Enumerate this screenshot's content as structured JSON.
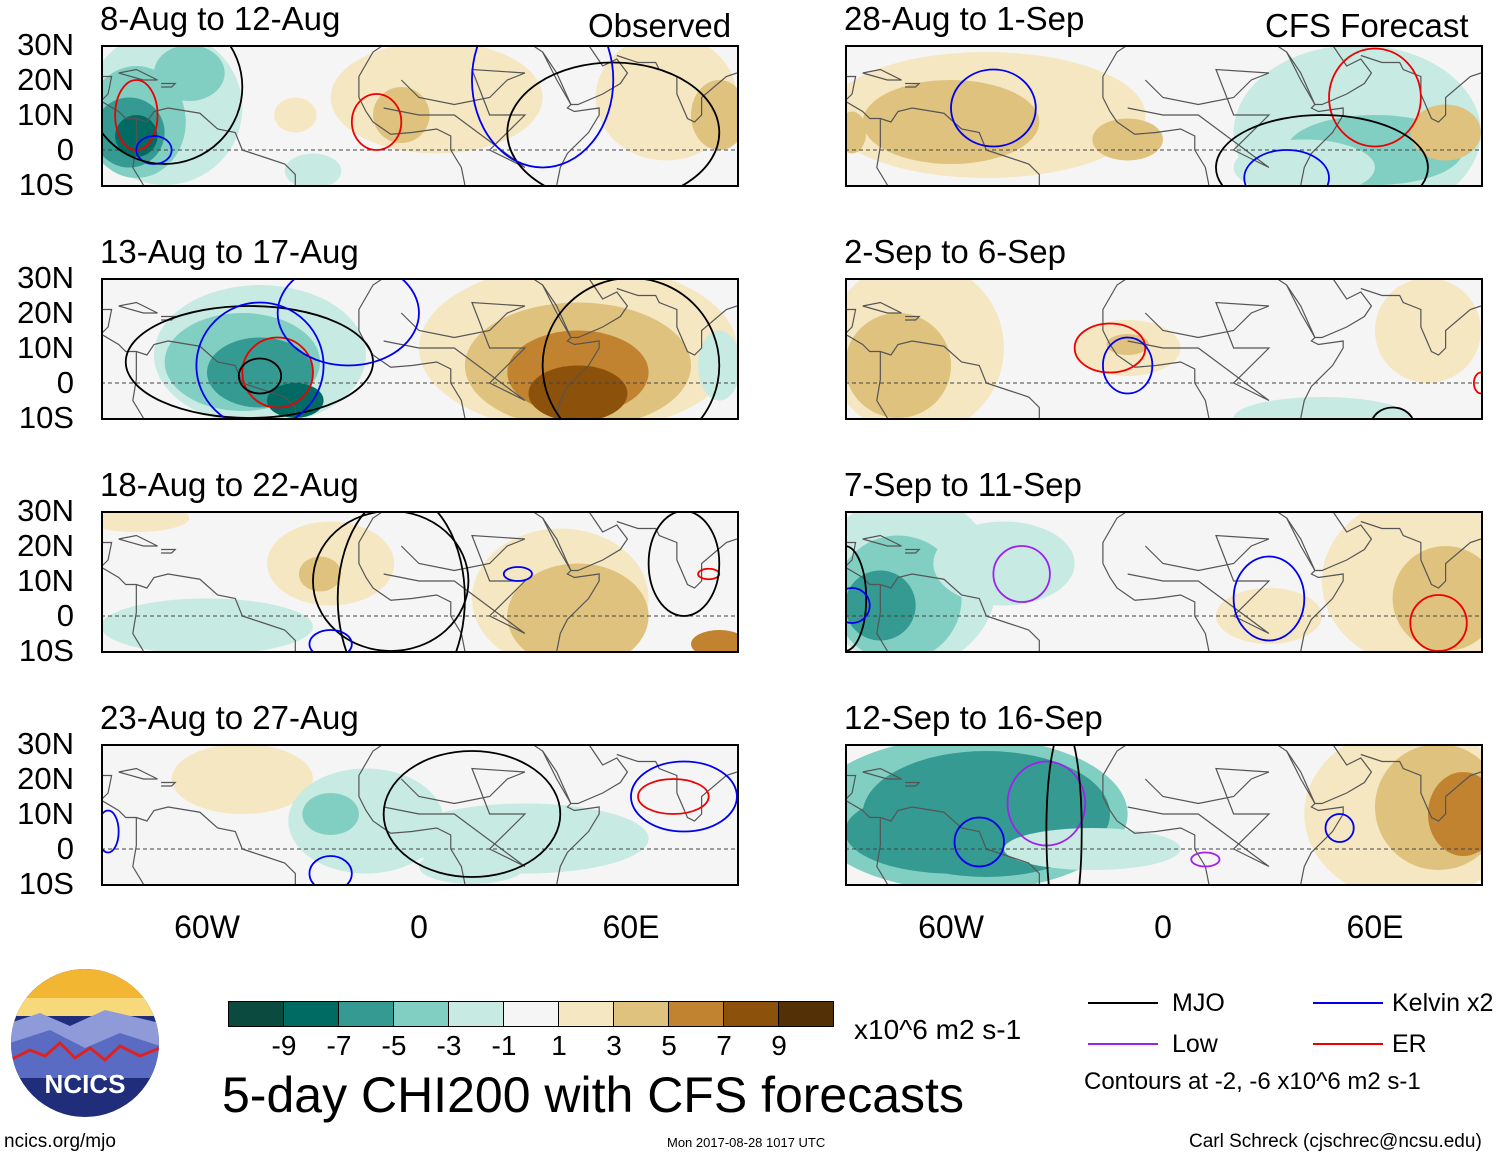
{
  "left_header": "Observed",
  "right_header": "CFS Forecast",
  "panels": [
    {
      "title": "8-Aug to 12-Aug",
      "column": "observed"
    },
    {
      "title": "13-Aug to 17-Aug",
      "column": "observed"
    },
    {
      "title": "18-Aug to 22-Aug",
      "column": "observed"
    },
    {
      "title": "23-Aug to 27-Aug",
      "column": "observed"
    },
    {
      "title": "28-Aug to 1-Sep",
      "column": "forecast"
    },
    {
      "title": "2-Sep to 6-Sep",
      "column": "forecast"
    },
    {
      "title": "7-Sep to 11-Sep",
      "column": "forecast"
    },
    {
      "title": "12-Sep to 16-Sep",
      "column": "forecast"
    }
  ],
  "lat_labels": [
    "30N",
    "20N",
    "10N",
    "0",
    "10S"
  ],
  "lon_labels": [
    "60W",
    "0",
    "60E"
  ],
  "colorbar": {
    "ticks": [
      "-9",
      "-7",
      "-5",
      "-3",
      "-1",
      "1",
      "3",
      "5",
      "7",
      "9"
    ],
    "colors": [
      "#0b4a3e",
      "#006b63",
      "#359a91",
      "#80cfc2",
      "#c7eae3",
      "#f5f5f5",
      "#f5e7c2",
      "#dfc27e",
      "#c18330",
      "#8c520c",
      "#543006"
    ],
    "units": "x10^6 m2 s-1"
  },
  "chart_data": {
    "type": "heatmap",
    "title": "5-day CHI200 with CFS forecasts",
    "variable": "CHI200 anomaly",
    "units": "x10^6 m2 s-1",
    "levels": [
      -9,
      -7,
      -5,
      -3,
      -1,
      1,
      3,
      5,
      7,
      9
    ],
    "lon_range": [
      "90W",
      "90E"
    ],
    "lat_range": [
      "10S",
      "30N"
    ]
  },
  "legend": {
    "items": [
      {
        "label": "MJO",
        "color": "#000000"
      },
      {
        "label": "Kelvin x2",
        "color": "#0000ee"
      },
      {
        "label": "Low",
        "color": "#a020f0"
      },
      {
        "label": "ER",
        "color": "#ee0000"
      }
    ],
    "note": "Contours at -2, -6 x10^6 m2 s-1"
  },
  "title": "5-day CHI200 with CFS forecasts",
  "logo_text": "NCICS",
  "footer": {
    "url": "ncics.org/mjo",
    "timestamp": "Mon 2017-08-28 1017 UTC",
    "credit": "Carl Schreck (cjschrec@ncsu.edu)"
  }
}
